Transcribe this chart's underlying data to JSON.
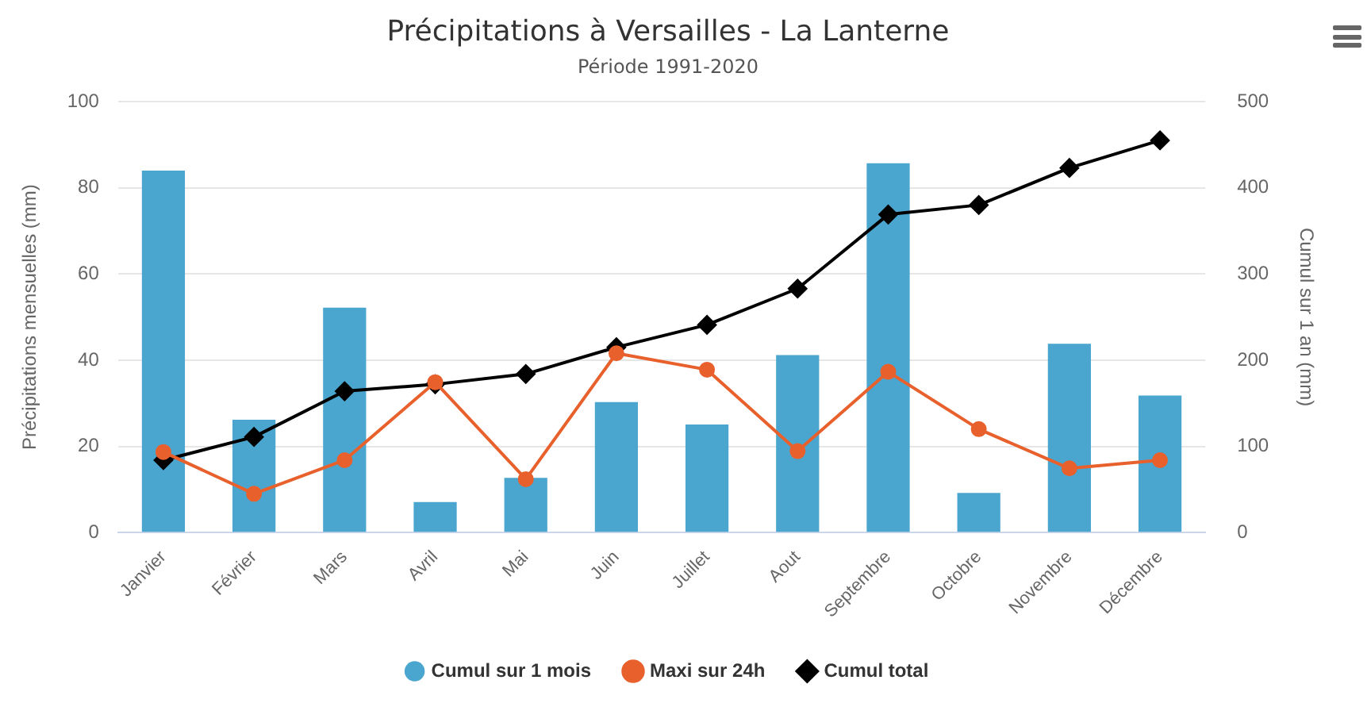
{
  "chart_data": {
    "type": "bar",
    "title": "Précipitations à Versailles - La Lanterne",
    "subtitle": "Période 1991-2020",
    "ylabel": "Précipitations mensuelles (mm)",
    "y2label": "Cumul sur 1 an (mm)",
    "categories": [
      "Janvier",
      "Février",
      "Mars",
      "Avril",
      "Mai",
      "Juin",
      "Juillet",
      "Aout",
      "Septembre",
      "Octobre",
      "Novembre",
      "Décembre"
    ],
    "series": [
      {
        "name": "Cumul sur 1 mois",
        "color": "#4ba6cf",
        "values": [
          84.0,
          26.2,
          52.2,
          7.1,
          12.7,
          30.3,
          25.1,
          41.2,
          85.7,
          9.2,
          43.8,
          31.8
        ]
      },
      {
        "name": "Maxi sur 24h",
        "type": "line",
        "color": "#e8602c",
        "marker": "circle",
        "values": [
          18.7,
          9.0,
          16.8,
          34.9,
          12.4,
          41.6,
          37.8,
          18.9,
          37.3,
          24.0,
          14.9,
          16.8
        ]
      },
      {
        "name": "Cumul total",
        "type": "line",
        "color": "#000000",
        "marker": "diamond",
        "axis": "y2",
        "values": [
          84,
          111,
          164,
          172,
          184,
          215,
          241,
          283,
          369,
          380,
          423,
          455
        ]
      }
    ],
    "ylim": [
      0,
      100
    ],
    "yticks": [
      0,
      20,
      40,
      60,
      80,
      100
    ],
    "y2lim": [
      0,
      500
    ],
    "y2ticks": [
      0,
      100,
      200,
      300,
      400,
      500
    ],
    "grid": "y",
    "legend": "bottom"
  }
}
